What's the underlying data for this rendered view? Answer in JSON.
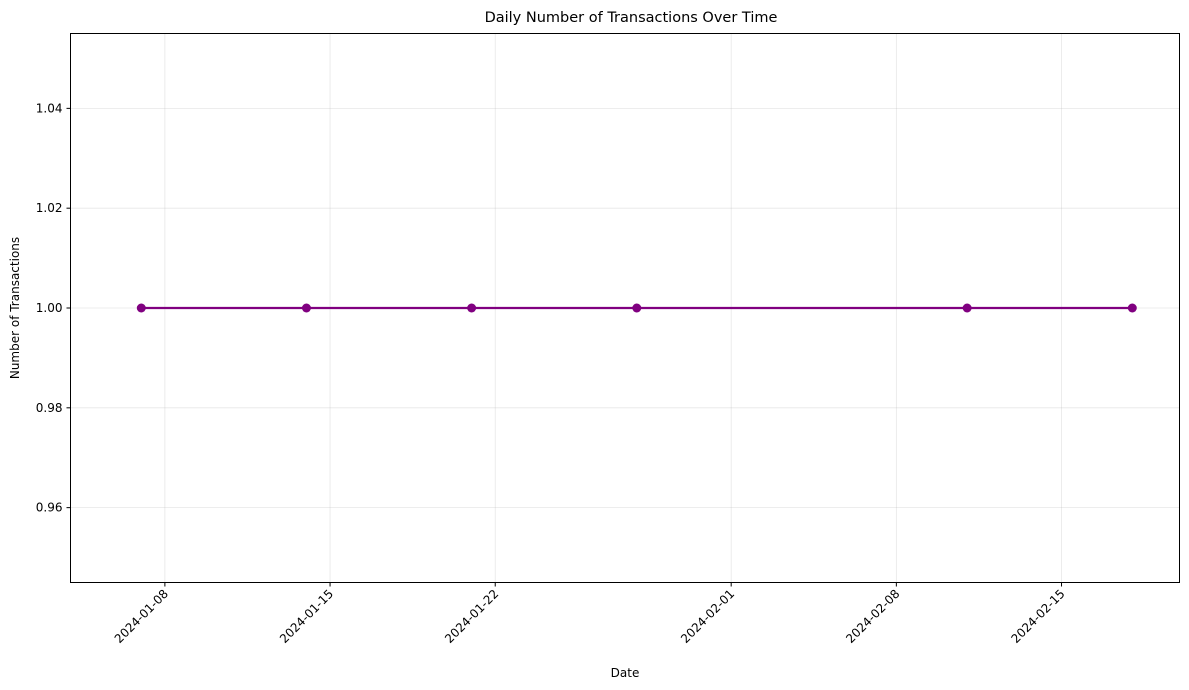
{
  "chart_data": {
    "type": "line",
    "title": "Daily Number of Transactions Over Time",
    "xlabel": "Date",
    "ylabel": "Number of Transactions",
    "x": [
      "2024-01-07",
      "2024-01-14",
      "2024-01-21",
      "2024-01-28",
      "2024-02-11",
      "2024-02-18"
    ],
    "series": [
      {
        "values": [
          1,
          1,
          1,
          1,
          1,
          1
        ],
        "color": "#800080",
        "marker": "circle"
      }
    ],
    "xlim": [
      "2024-01-04",
      "2024-02-20"
    ],
    "ylim": [
      0.945,
      1.055
    ],
    "x_ticks": [
      "2024-01-08",
      "2024-01-15",
      "2024-01-22",
      "2024-02-01",
      "2024-02-08",
      "2024-02-15"
    ],
    "y_ticks": [
      "0.96",
      "0.98",
      "1.00",
      "1.02",
      "1.04"
    ],
    "grid": true,
    "legend": "none"
  }
}
